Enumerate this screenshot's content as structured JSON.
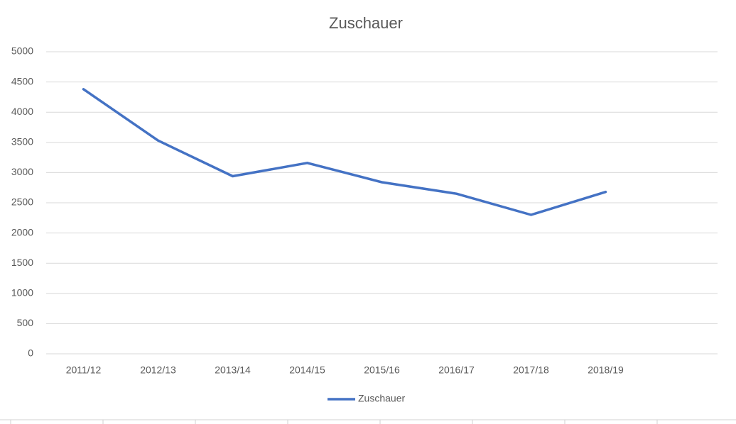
{
  "chart_data": {
    "type": "line",
    "title": "Zuschauer",
    "categories": [
      "2011/12",
      "2012/13",
      "2013/14",
      "2014/15",
      "2015/16",
      "2016/17",
      "2017/18",
      "2018/19",
      null
    ],
    "series": [
      {
        "name": "Zuschauer",
        "color": "#4472c4",
        "values": [
          4380,
          3530,
          2940,
          3160,
          2840,
          2650,
          2300,
          2680,
          null
        ]
      }
    ],
    "ylim": [
      0,
      5000
    ],
    "yticks": [
      0,
      500,
      1000,
      1500,
      2000,
      2500,
      3000,
      3500,
      4000,
      4500,
      5000
    ],
    "grid": true,
    "legend": "bottom"
  }
}
